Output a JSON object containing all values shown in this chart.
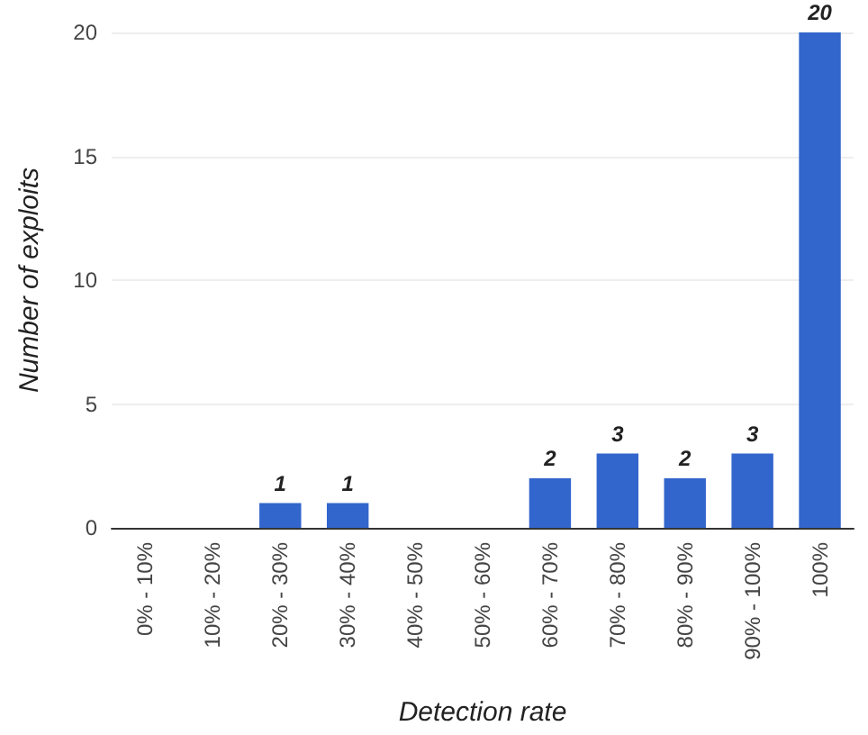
{
  "chart_data": {
    "type": "bar",
    "xlabel": "Detection rate",
    "ylabel": "Number of exploits",
    "categories": [
      "0% - 10%",
      "10% - 20%",
      "20% - 30%",
      "30% - 40%",
      "40% - 50%",
      "50% - 60%",
      "60% - 70%",
      "70% - 80%",
      "80% - 90%",
      "90% - 100%",
      "100%"
    ],
    "values": [
      0,
      0,
      1,
      1,
      0,
      0,
      2,
      3,
      2,
      3,
      20
    ],
    "value_labels": [
      null,
      null,
      "1",
      "1",
      null,
      null,
      "2",
      "3",
      "2",
      "3",
      "20"
    ],
    "color": "#3366cc",
    "ylim": [
      0,
      20
    ],
    "yticks": [
      0,
      5,
      10,
      15,
      20
    ],
    "grid": "y"
  }
}
